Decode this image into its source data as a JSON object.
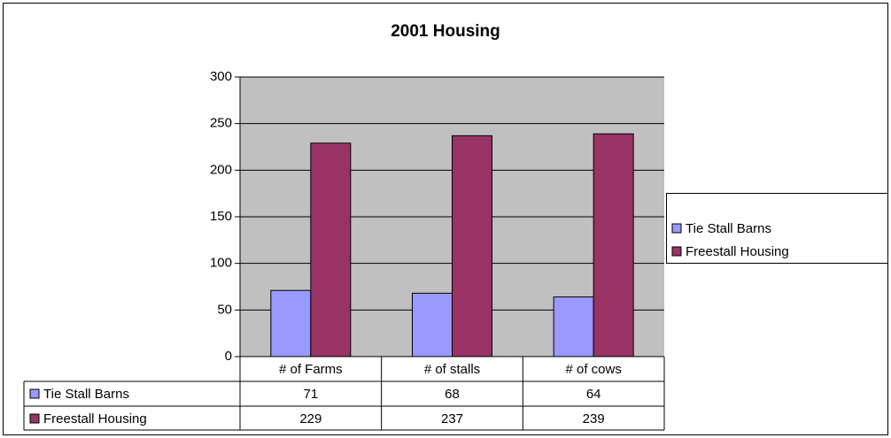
{
  "chart_data": {
    "type": "bar",
    "title": "2001 Housing",
    "categories": [
      "# of Farms",
      "# of stalls",
      "# of cows"
    ],
    "series": [
      {
        "name": "Tie Stall Barns",
        "color": "#9999ff",
        "values": [
          71,
          68,
          64
        ]
      },
      {
        "name": "Freestall Housing",
        "color": "#993366",
        "values": [
          229,
          237,
          239
        ]
      }
    ],
    "ylim": [
      0,
      300
    ],
    "yticks": [
      0,
      50,
      100,
      150,
      200,
      250,
      300
    ],
    "grid": true,
    "legend": "right",
    "data_table": true
  }
}
